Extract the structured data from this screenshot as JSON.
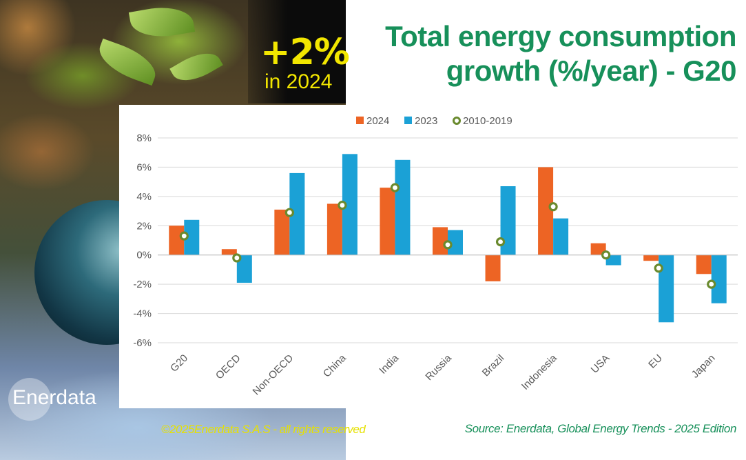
{
  "headline": {
    "big_value": "+2%",
    "year_text": "in 2024"
  },
  "title": {
    "line1": "Total energy consumption",
    "line2": "growth (%/year) - G20"
  },
  "logo_text": "Enerdata",
  "copyright": "©2025Enerdata S.A.S - all rights reserved",
  "source": "Source:  Enerdata, Global Energy Trends - 2025 Edition",
  "colors": {
    "s2024": "#ed6424",
    "s2023": "#1ba1d6",
    "s2010": "#6a8a2e",
    "title": "#17905a",
    "headline": "#f2e600"
  },
  "chart_data": {
    "type": "bar",
    "categories": [
      "G20",
      "OECD",
      "Non-OECD",
      "China",
      "India",
      "Russia",
      "Brazil",
      "Indonesia",
      "USA",
      "EU",
      "Japan"
    ],
    "series": [
      {
        "name": "2024",
        "kind": "bar",
        "values": [
          2.0,
          0.4,
          3.1,
          3.5,
          4.6,
          1.9,
          -1.8,
          6.0,
          0.8,
          -0.4,
          -1.3
        ]
      },
      {
        "name": "2023",
        "kind": "bar",
        "values": [
          2.4,
          -1.9,
          5.6,
          6.9,
          6.5,
          1.7,
          4.7,
          2.5,
          -0.7,
          -4.6,
          -3.3
        ]
      },
      {
        "name": "2010-2019",
        "kind": "marker",
        "values": [
          1.3,
          -0.2,
          2.9,
          3.4,
          4.6,
          0.7,
          0.9,
          3.3,
          0.0,
          -0.9,
          -2.0
        ]
      }
    ],
    "ylim": [
      -6,
      8
    ],
    "yticks": [
      -6,
      -4,
      -2,
      0,
      2,
      4,
      6,
      8
    ],
    "ytick_labels": [
      "-6%",
      "-4%",
      "-2%",
      "0%",
      "2%",
      "4%",
      "6%",
      "8%"
    ],
    "grid": true,
    "legend_position": "top"
  }
}
